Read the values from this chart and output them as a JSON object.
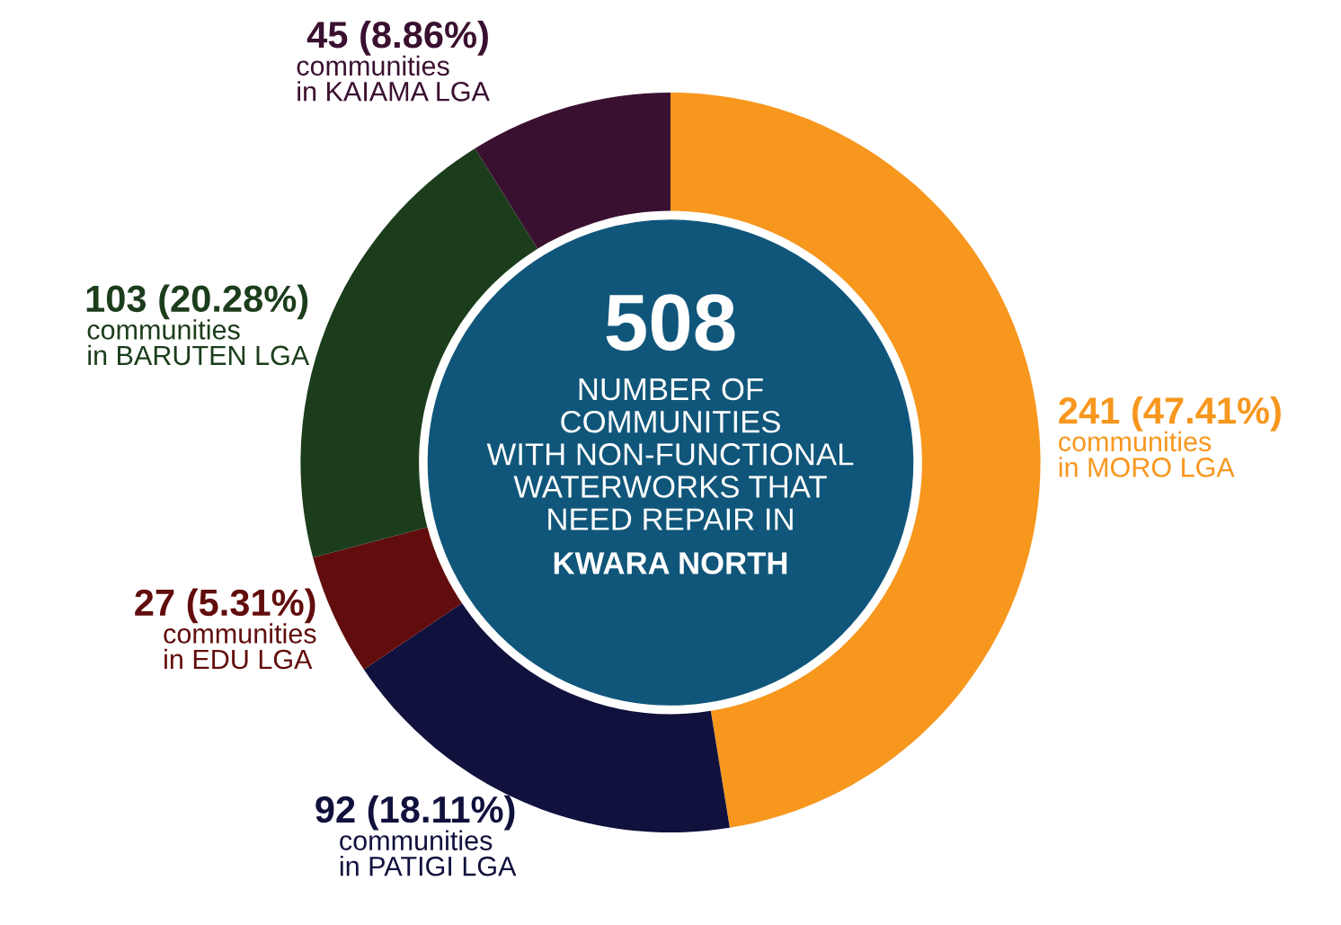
{
  "chart_data": {
    "type": "donut",
    "categories": [
      "communities\nin MORO LGA",
      "communities\nin PATIGI LGA",
      "communities\nin EDU LGA",
      "communities\nin BARUTEN LGA",
      "communities\nin KAIAMA LGA"
    ],
    "values": [
      241,
      92,
      27,
      103,
      45
    ],
    "colors": [
      "#f7971e",
      "#10113d",
      "#620d0d",
      "#1c3d1c",
      "#3a1030"
    ],
    "value_labels": [
      "241 (47.41%)",
      "92 (18.11%)",
      "27 (5.31%)",
      "103 (20.28%)",
      "45 (8.86%)"
    ],
    "annotations": [
      "508",
      "NUMBER OF\nCOMMUNITIES\nWITH NON-FUNCTIONAL\nWATERWORKS THAT\nNEED REPAIR IN",
      "KWARA NORTH"
    ]
  }
}
